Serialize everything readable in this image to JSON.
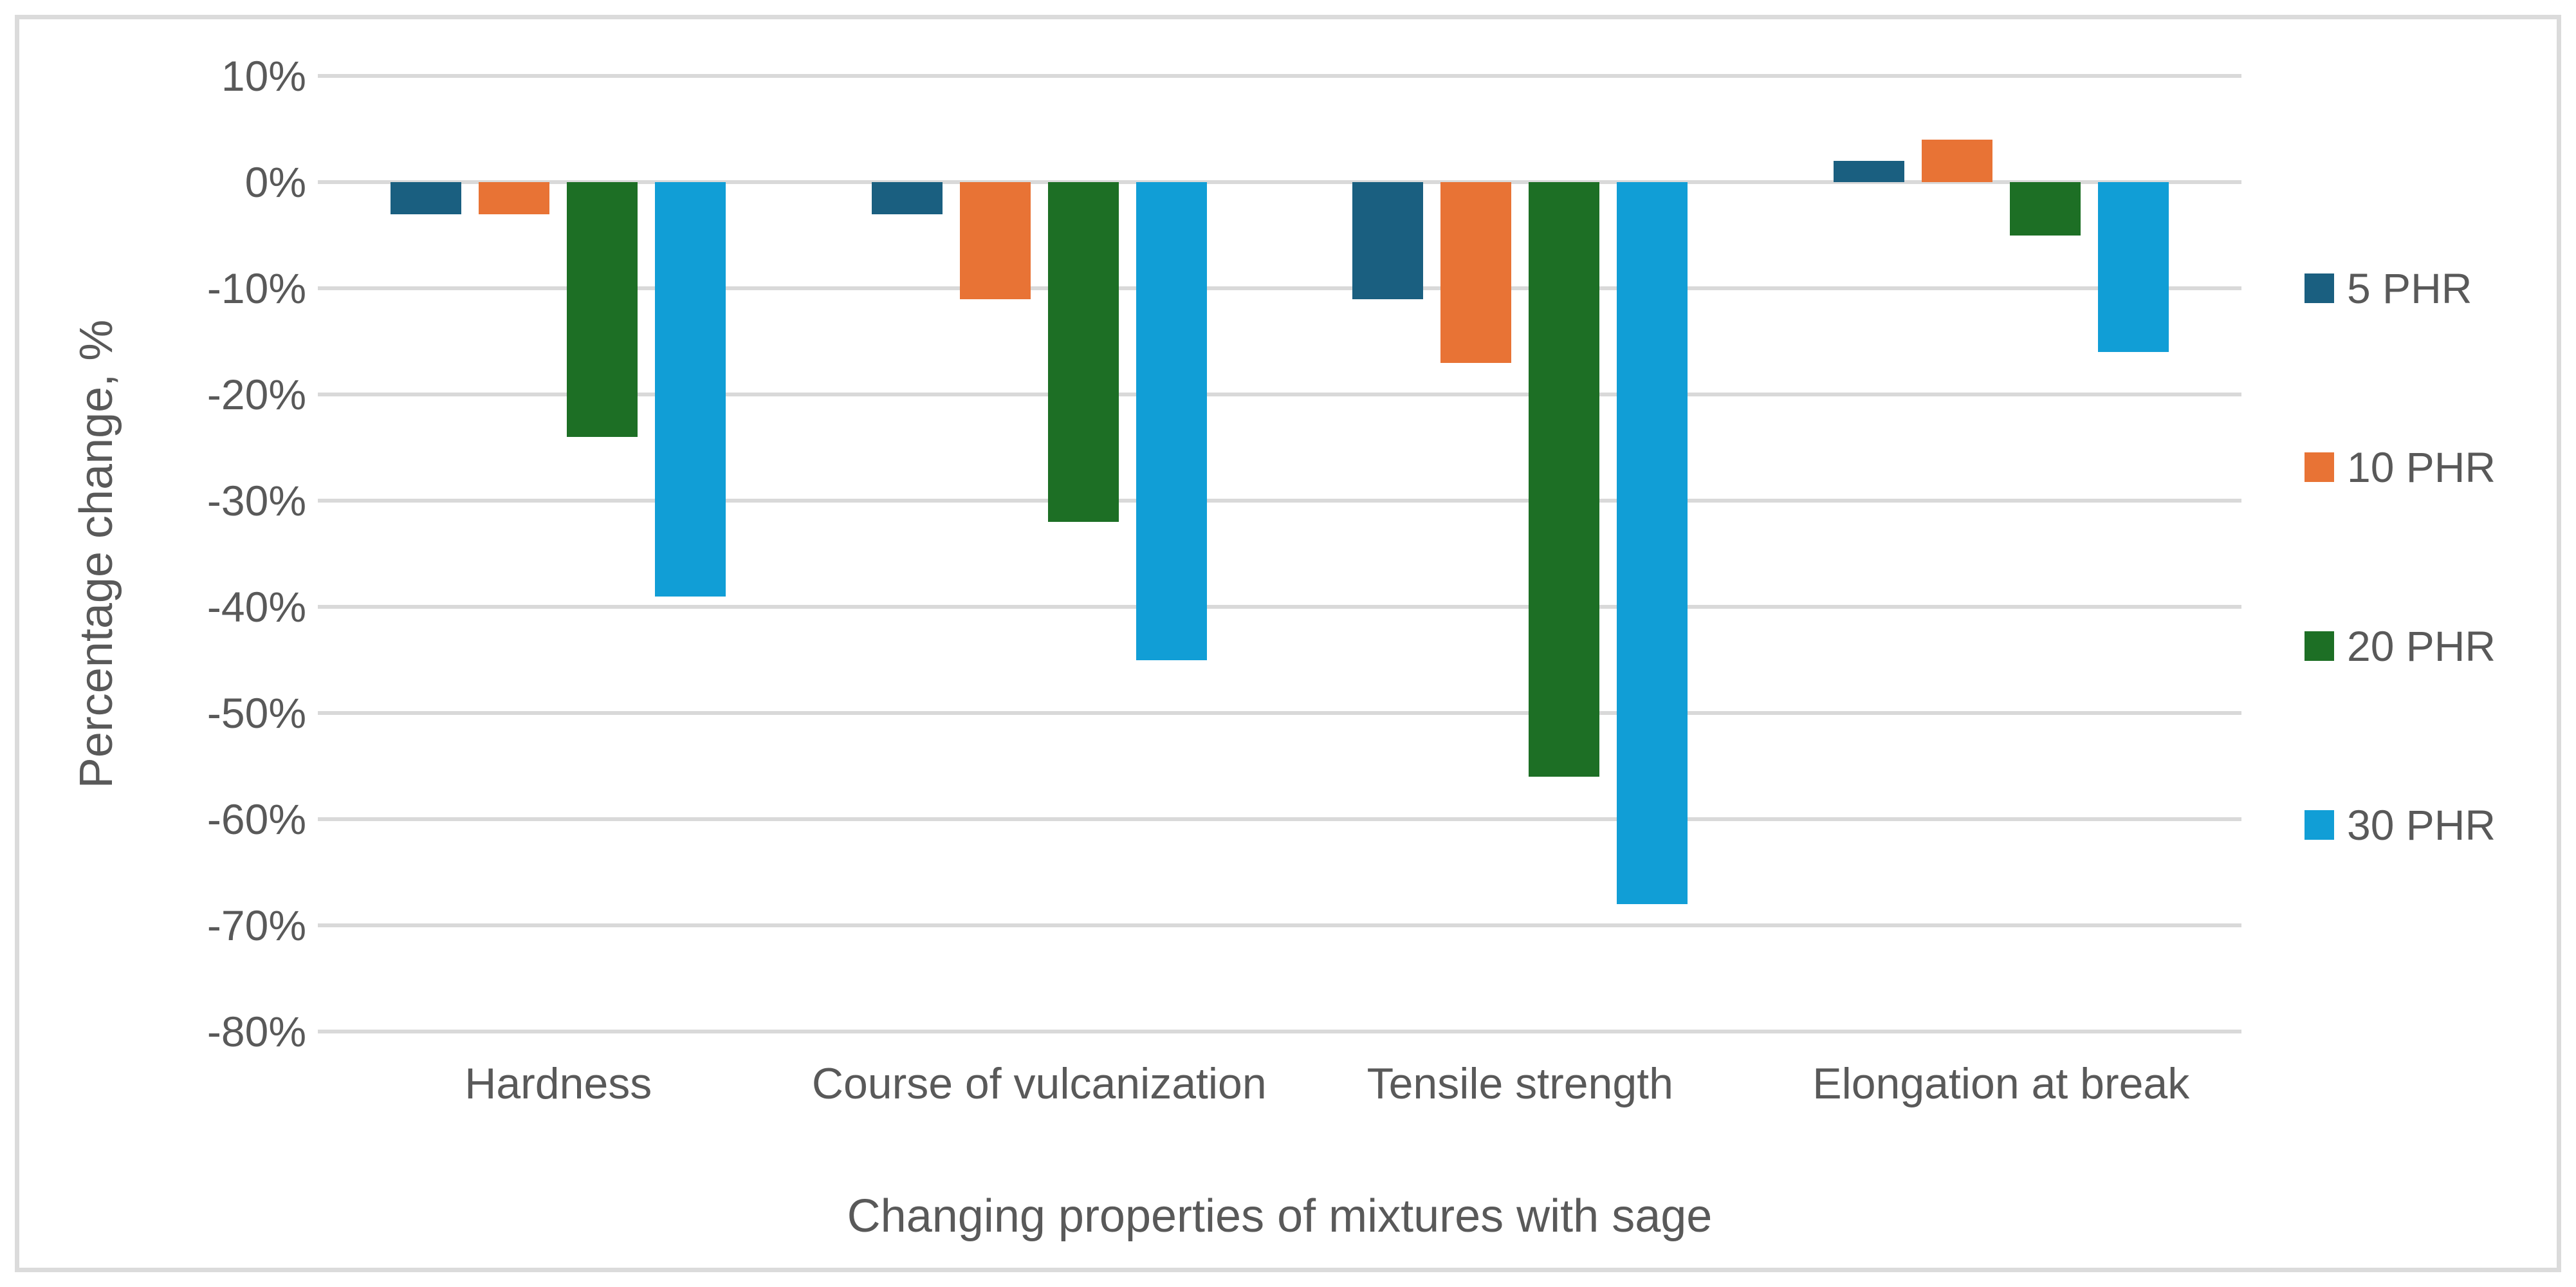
{
  "chart_data": {
    "type": "bar",
    "title": "",
    "xlabel": "Changing properties of mixtures with sage",
    "ylabel": "Percentage change, %",
    "categories": [
      "Hardness",
      "Course of vulcanization",
      "Tensile strength",
      "Elongation at break"
    ],
    "series": [
      {
        "name": "5 PHR",
        "color": "#1A5F80",
        "values": [
          -3,
          -3,
          -11,
          2
        ]
      },
      {
        "name": "10 PHR",
        "color": "#E87335",
        "values": [
          -3,
          -11,
          -17,
          4
        ]
      },
      {
        "name": "20 PHR",
        "color": "#1D6F25",
        "values": [
          -24,
          -32,
          -56,
          -5
        ]
      },
      {
        "name": "30 PHR",
        "color": "#119ED6",
        "values": [
          -39,
          -45,
          -68,
          -16
        ]
      }
    ],
    "ylim": [
      -80,
      10
    ],
    "yticks": [
      {
        "value": 10,
        "label": "10%"
      },
      {
        "value": 0,
        "label": "0%"
      },
      {
        "value": -10,
        "label": "-10%"
      },
      {
        "value": -20,
        "label": "-20%"
      },
      {
        "value": -30,
        "label": "-30%"
      },
      {
        "value": -40,
        "label": "-40%"
      },
      {
        "value": -50,
        "label": "-50%"
      },
      {
        "value": -60,
        "label": "-60%"
      },
      {
        "value": -70,
        "label": "-70%"
      },
      {
        "value": -80,
        "label": "-80%"
      }
    ],
    "grid": true,
    "legend_position": "right"
  },
  "colors": {
    "text": "#595959",
    "gridline": "#d9d9d9",
    "frame_border": "#dbdbdb",
    "background": "#ffffff"
  }
}
